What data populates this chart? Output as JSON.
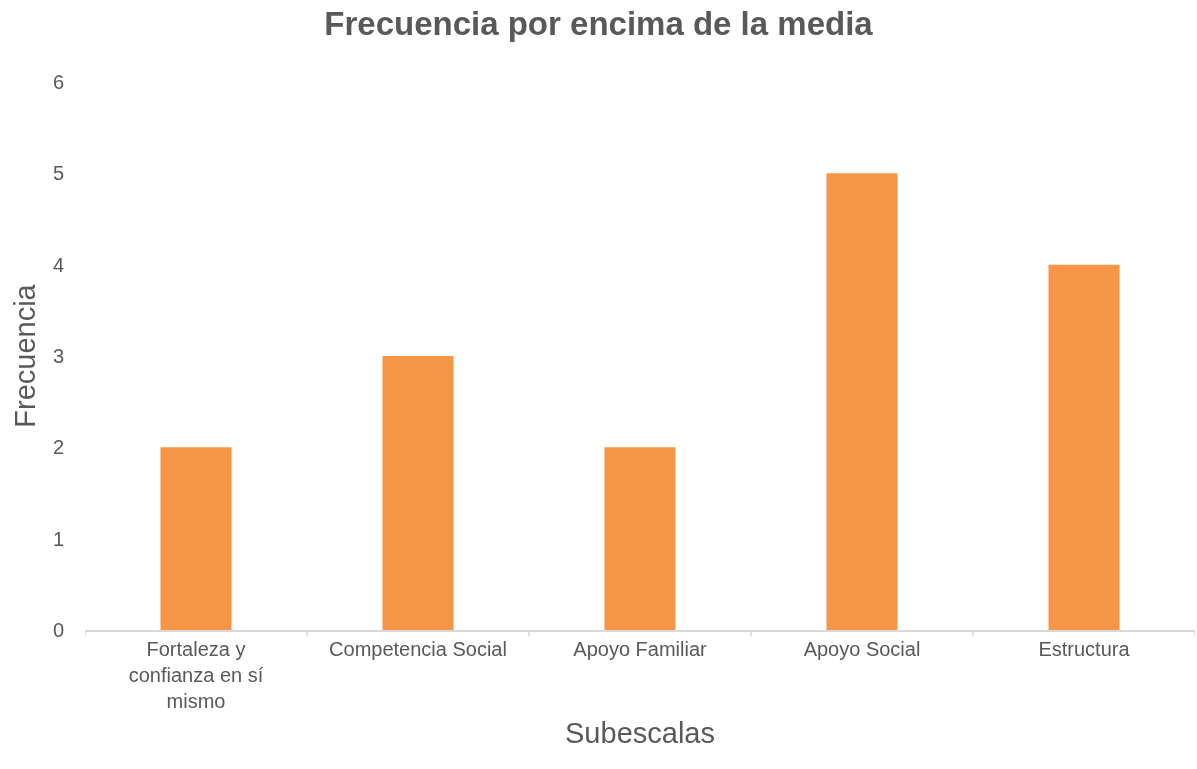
{
  "chart_data": {
    "type": "bar",
    "title": "Frecuencia por encima de la media",
    "xlabel": "Subescalas",
    "ylabel": "Frecuencia",
    "categories": [
      "Fortaleza y confianza en sí mismo",
      "Competencia Social",
      "Apoyo Familiar",
      "Apoyo Social",
      "Estructura"
    ],
    "series": [
      {
        "color": "#f79646",
        "values": [
          2,
          3,
          2,
          5,
          4
        ]
      }
    ],
    "ylim": [
      0,
      6
    ],
    "yticks": [
      0,
      1,
      2,
      3,
      4,
      5,
      6
    ],
    "legend": false
  }
}
